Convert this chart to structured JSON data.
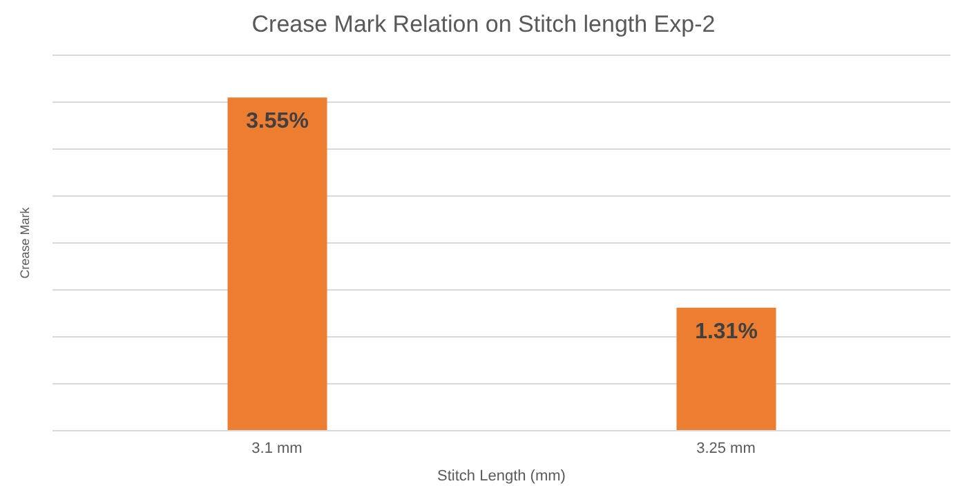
{
  "chart_data": {
    "type": "bar",
    "title": "Crease Mark Relation on Stitch length Exp-2",
    "xlabel": "Stitch Length (mm)",
    "ylabel": "Crease Mark",
    "categories": [
      "3.1 mm",
      "3.25 mm"
    ],
    "values": [
      3.55,
      1.31
    ],
    "color": "#ed7d31",
    "value_labels": [
      "3.55%",
      "1.31%"
    ],
    "ylim": [
      0,
      4
    ],
    "yticks": [
      0,
      0.5,
      1,
      1.5,
      2,
      2.5,
      3,
      3.5,
      4
    ],
    "tick_labels": "x",
    "grid": "y"
  }
}
